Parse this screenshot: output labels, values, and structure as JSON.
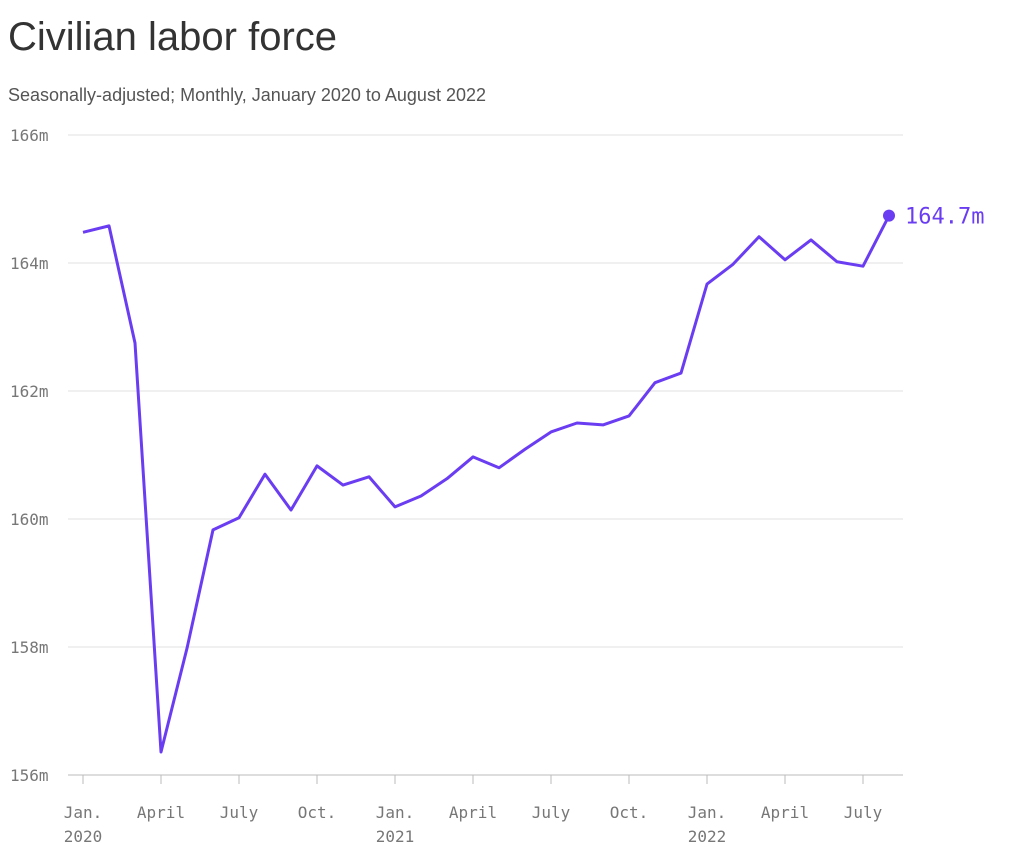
{
  "chart_data": {
    "type": "line",
    "title": "Civilian labor force",
    "subtitle": "Seasonally-adjusted; Monthly, January 2020 to August 2022",
    "x": [
      "2020-01",
      "2020-02",
      "2020-03",
      "2020-04",
      "2020-05",
      "2020-06",
      "2020-07",
      "2020-08",
      "2020-09",
      "2020-10",
      "2020-11",
      "2020-12",
      "2021-01",
      "2021-02",
      "2021-03",
      "2021-04",
      "2021-05",
      "2021-06",
      "2021-07",
      "2021-08",
      "2021-09",
      "2021-10",
      "2021-11",
      "2021-12",
      "2022-01",
      "2022-02",
      "2022-03",
      "2022-04",
      "2022-05",
      "2022-06",
      "2022-07",
      "2022-08"
    ],
    "series": [
      {
        "name": "Civilian labor force",
        "color": "#6a3df2",
        "values": [
          164.48,
          164.58,
          162.75,
          156.36,
          157.98,
          159.83,
          160.02,
          160.7,
          160.14,
          160.83,
          160.53,
          160.66,
          160.19,
          160.36,
          160.63,
          160.97,
          160.8,
          161.09,
          161.36,
          161.5,
          161.47,
          161.61,
          162.13,
          162.28,
          163.67,
          163.98,
          164.41,
          164.05,
          164.36,
          164.02,
          163.95,
          164.74
        ]
      }
    ],
    "end_label": {
      "value": 164.74,
      "label": "164.7m"
    },
    "ylim": [
      156,
      166
    ],
    "yticks": [
      {
        "value": 156,
        "label": "156m"
      },
      {
        "value": 158,
        "label": "158m"
      },
      {
        "value": 160,
        "label": "160m"
      },
      {
        "value": 162,
        "label": "162m"
      },
      {
        "value": 164,
        "label": "164m"
      },
      {
        "value": 166,
        "label": "166m"
      }
    ],
    "xlim": [
      "2020-01",
      "2022-08"
    ],
    "xticks": [
      {
        "value": "2020-01",
        "label": "Jan.",
        "year": "2020"
      },
      {
        "value": "2020-04",
        "label": "April"
      },
      {
        "value": "2020-07",
        "label": "July"
      },
      {
        "value": "2020-10",
        "label": "Oct."
      },
      {
        "value": "2021-01",
        "label": "Jan.",
        "year": "2021"
      },
      {
        "value": "2021-04",
        "label": "April"
      },
      {
        "value": "2021-07",
        "label": "July"
      },
      {
        "value": "2021-10",
        "label": "Oct."
      },
      {
        "value": "2022-01",
        "label": "Jan.",
        "year": "2022"
      },
      {
        "value": "2022-04",
        "label": "April"
      },
      {
        "value": "2022-07",
        "label": "July"
      }
    ],
    "grid": true
  }
}
